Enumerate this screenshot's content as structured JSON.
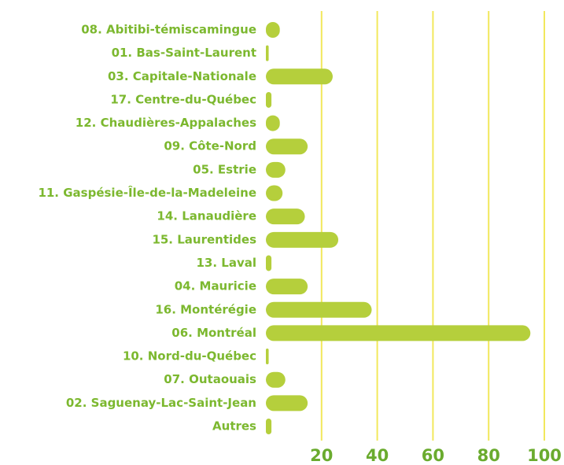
{
  "chart_data": {
    "type": "barh",
    "categories": [
      "08. Abitibi-témiscamingue",
      "01. Bas-Saint-Laurent",
      "03. Capitale-Nationale",
      "17. Centre-du-Québec",
      "12. Chaudières-Appalaches",
      "09. Côte-Nord",
      "05. Estrie",
      "11. Gaspésie-Île-de-la-Madeleine",
      "14. Lanaudière",
      "15. Laurentides",
      "13. Laval",
      "04. Mauricie",
      "16. Montérégie",
      "06. Montréal",
      "10. Nord-du-Québec",
      "07. Outaouais",
      "02. Saguenay-Lac-Saint-Jean",
      "Autres"
    ],
    "values": [
      5,
      1,
      24,
      2,
      5,
      15,
      7,
      6,
      14,
      26,
      2,
      15,
      38,
      95,
      1,
      7,
      15,
      2
    ],
    "color": "#b5cf3c",
    "xlim": [
      0,
      100
    ],
    "xticks": [
      20,
      40,
      60,
      80,
      100
    ],
    "grid": true
  }
}
